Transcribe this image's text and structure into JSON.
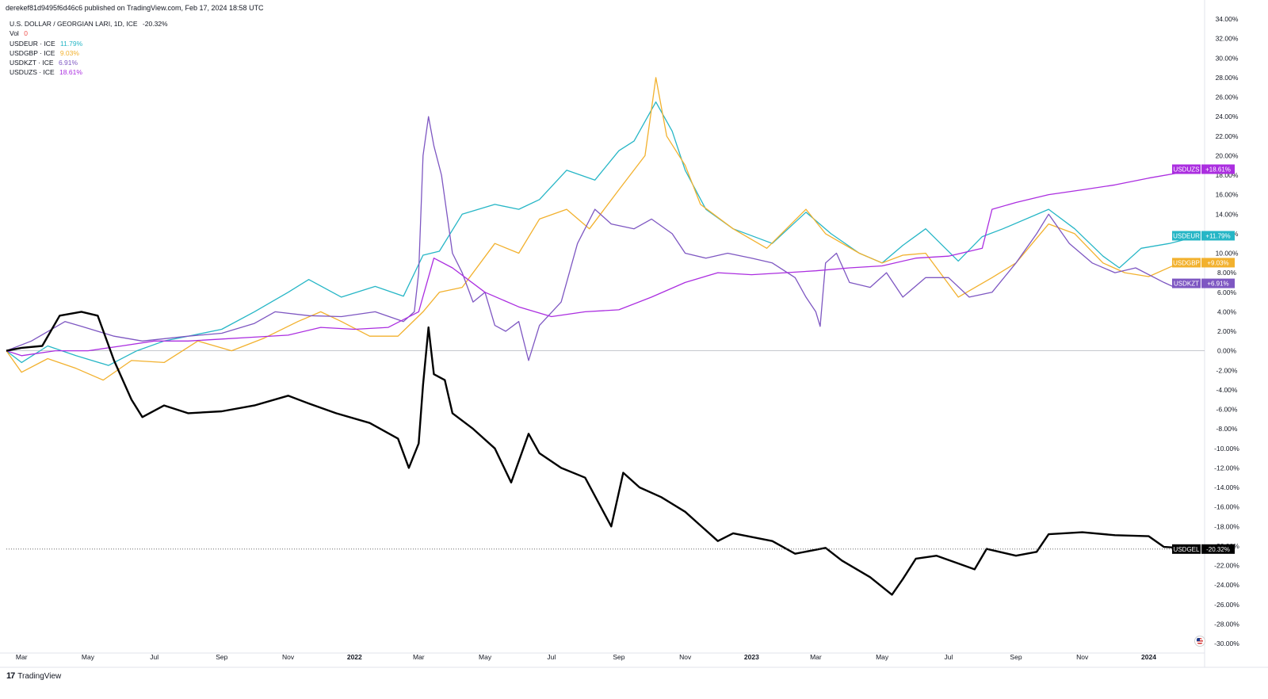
{
  "header": {
    "published": "derekef81d9495f6d46c6 published on TradingView.com, Feb 17, 2024 18:58 UTC"
  },
  "legend": {
    "main_title": "U.S. DOLLAR / GEORGIAN LARI, 1D, ICE",
    "main_value": "-20.32%",
    "vol_label": "Vol",
    "vol_value": "0",
    "rows": [
      {
        "label": "USDEUR · ICE",
        "value": "11.79%",
        "color": "#26b6c6"
      },
      {
        "label": "USDGBP · ICE",
        "value": "9.03%",
        "color": "#f2b12e"
      },
      {
        "label": "USDKZT · ICE",
        "value": "6.91%",
        "color": "#7e57c2"
      },
      {
        "label": "USDUZS · ICE",
        "value": "18.61%",
        "color": "#ab2ee0"
      }
    ]
  },
  "footer": {
    "brand": "TradingView",
    "logo": "tv-logo-icon"
  },
  "chart_data": {
    "type": "line",
    "x_tick_labels": [
      "Mar",
      "May",
      "Jul",
      "Sep",
      "Nov",
      "2022",
      "Mar",
      "May",
      "Jul",
      "Sep",
      "Nov",
      "2023",
      "Mar",
      "May",
      "Jul",
      "Sep",
      "Nov",
      "2024"
    ],
    "y_tick_labels": [
      "34.00%",
      "32.00%",
      "30.00%",
      "28.00%",
      "26.00%",
      "24.00%",
      "22.00%",
      "20.00%",
      "18.00%",
      "16.00%",
      "14.00%",
      "12.00%",
      "10.00%",
      "8.00%",
      "6.00%",
      "4.00%",
      "2.00%",
      "0.00%",
      "-2.00%",
      "-4.00%",
      "-6.00%",
      "-8.00%",
      "-10.00%",
      "-12.00%",
      "-14.00%",
      "-16.00%",
      "-18.00%",
      "-20.00%",
      "-22.00%",
      "-24.00%",
      "-26.00%",
      "-28.00%",
      "-30.00%"
    ],
    "ylim": [
      -30,
      34
    ],
    "xlim": [
      "2021-02-15",
      "2024-02-17"
    ],
    "series": [
      {
        "name": "USDGEL",
        "label": "-20.32%",
        "color": "#000000",
        "width": 2.4,
        "points": [
          [
            "2021-02-15",
            0
          ],
          [
            "2021-03-01",
            0.3
          ],
          [
            "2021-03-20",
            0.5
          ],
          [
            "2021-04-05",
            3.6
          ],
          [
            "2021-04-25",
            4
          ],
          [
            "2021-05-10",
            3.6
          ],
          [
            "2021-05-25",
            -1
          ],
          [
            "2021-06-10",
            -5
          ],
          [
            "2021-06-20",
            -6.8
          ],
          [
            "2021-07-10",
            -5.6
          ],
          [
            "2021-08-01",
            -6.4
          ],
          [
            "2021-09-01",
            -6.2
          ],
          [
            "2021-10-01",
            -5.6
          ],
          [
            "2021-11-01",
            -4.6
          ],
          [
            "2021-11-20",
            -5.4
          ],
          [
            "2021-12-15",
            -6.4
          ],
          [
            "2022-01-15",
            -7.4
          ],
          [
            "2022-02-10",
            -9
          ],
          [
            "2022-02-20",
            -12
          ],
          [
            "2022-03-01",
            -9.5
          ],
          [
            "2022-03-05",
            -3.5
          ],
          [
            "2022-03-10",
            2.4
          ],
          [
            "2022-03-15",
            -2.4
          ],
          [
            "2022-03-25",
            -3
          ],
          [
            "2022-04-01",
            -6.4
          ],
          [
            "2022-04-20",
            -8
          ],
          [
            "2022-05-10",
            -10
          ],
          [
            "2022-05-25",
            -13.5
          ],
          [
            "2022-06-10",
            -8.5
          ],
          [
            "2022-06-20",
            -10.5
          ],
          [
            "2022-07-10",
            -12
          ],
          [
            "2022-08-01",
            -13
          ],
          [
            "2022-08-25",
            -18
          ],
          [
            "2022-09-05",
            -12.5
          ],
          [
            "2022-09-20",
            -14
          ],
          [
            "2022-10-10",
            -15
          ],
          [
            "2022-11-01",
            -16.5
          ],
          [
            "2022-12-01",
            -19.5
          ],
          [
            "2022-12-15",
            -18.7
          ],
          [
            "2023-01-20",
            -19.5
          ],
          [
            "2023-02-10",
            -20.8
          ],
          [
            "2023-03-10",
            -20.2
          ],
          [
            "2023-03-25",
            -21.5
          ],
          [
            "2023-04-20",
            -23.2
          ],
          [
            "2023-05-10",
            -25
          ],
          [
            "2023-05-20",
            -23.4
          ],
          [
            "2023-06-01",
            -21.3
          ],
          [
            "2023-06-20",
            -21
          ],
          [
            "2023-07-10",
            -21.8
          ],
          [
            "2023-07-25",
            -22.4
          ],
          [
            "2023-08-05",
            -20.3
          ],
          [
            "2023-09-01",
            -21
          ],
          [
            "2023-09-20",
            -20.6
          ],
          [
            "2023-10-01",
            -18.8
          ],
          [
            "2023-11-01",
            -18.6
          ],
          [
            "2023-12-01",
            -18.9
          ],
          [
            "2024-01-01",
            -19
          ],
          [
            "2024-01-15",
            -20.1
          ],
          [
            "2024-02-17",
            -20.32
          ]
        ]
      },
      {
        "name": "USDEUR",
        "label": "+11.79%",
        "color": "#26b6c6",
        "width": 1.3,
        "points": [
          [
            "2021-02-15",
            0
          ],
          [
            "2021-03-01",
            -1.2
          ],
          [
            "2021-03-25",
            0.5
          ],
          [
            "2021-04-20",
            -0.5
          ],
          [
            "2021-05-20",
            -1.5
          ],
          [
            "2021-06-15",
            0
          ],
          [
            "2021-07-10",
            1
          ],
          [
            "2021-08-01",
            1.5
          ],
          [
            "2021-09-01",
            2.2
          ],
          [
            "2021-10-01",
            4
          ],
          [
            "2021-11-01",
            6
          ],
          [
            "2021-11-20",
            7.3
          ],
          [
            "2021-12-20",
            5.5
          ],
          [
            "2022-01-20",
            6.6
          ],
          [
            "2022-02-15",
            5.6
          ],
          [
            "2022-03-05",
            9.8
          ],
          [
            "2022-03-20",
            10.2
          ],
          [
            "2022-04-10",
            14
          ],
          [
            "2022-05-10",
            15
          ],
          [
            "2022-06-01",
            14.5
          ],
          [
            "2022-06-20",
            15.5
          ],
          [
            "2022-07-15",
            18.5
          ],
          [
            "2022-08-10",
            17.5
          ],
          [
            "2022-09-01",
            20.5
          ],
          [
            "2022-09-15",
            21.5
          ],
          [
            "2022-10-05",
            25.5
          ],
          [
            "2022-10-20",
            22.5
          ],
          [
            "2022-11-01",
            18.5
          ],
          [
            "2022-11-20",
            14.5
          ],
          [
            "2022-12-15",
            12.5
          ],
          [
            "2023-01-20",
            11
          ],
          [
            "2023-02-20",
            14.2
          ],
          [
            "2023-03-15",
            12
          ],
          [
            "2023-04-10",
            10
          ],
          [
            "2023-05-01",
            9
          ],
          [
            "2023-05-20",
            10.8
          ],
          [
            "2023-06-10",
            12.5
          ],
          [
            "2023-07-10",
            9.2
          ],
          [
            "2023-08-01",
            11.7
          ],
          [
            "2023-08-20",
            12.5
          ],
          [
            "2023-10-01",
            14.5
          ],
          [
            "2023-10-25",
            12.5
          ],
          [
            "2023-11-20",
            9.7
          ],
          [
            "2023-12-05",
            8.5
          ],
          [
            "2023-12-25",
            10.5
          ],
          [
            "2024-01-20",
            11
          ],
          [
            "2024-02-17",
            11.79
          ]
        ]
      },
      {
        "name": "USDGBP",
        "label": "+9.03%",
        "color": "#f2b12e",
        "width": 1.3,
        "points": [
          [
            "2021-02-15",
            0
          ],
          [
            "2021-03-01",
            -2.2
          ],
          [
            "2021-03-25",
            -0.8
          ],
          [
            "2021-04-20",
            -1.8
          ],
          [
            "2021-05-15",
            -3
          ],
          [
            "2021-06-10",
            -1
          ],
          [
            "2021-07-10",
            -1.2
          ],
          [
            "2021-08-10",
            1
          ],
          [
            "2021-09-10",
            0
          ],
          [
            "2021-10-10",
            1.3
          ],
          [
            "2021-11-10",
            3
          ],
          [
            "2021-12-01",
            4
          ],
          [
            "2021-12-20",
            3
          ],
          [
            "2022-01-15",
            1.5
          ],
          [
            "2022-02-10",
            1.5
          ],
          [
            "2022-03-05",
            4
          ],
          [
            "2022-03-20",
            6
          ],
          [
            "2022-04-10",
            6.5
          ],
          [
            "2022-05-10",
            11
          ],
          [
            "2022-06-01",
            10
          ],
          [
            "2022-06-20",
            13.5
          ],
          [
            "2022-07-15",
            14.5
          ],
          [
            "2022-08-05",
            12.5
          ],
          [
            "2022-09-01",
            16.5
          ],
          [
            "2022-09-25",
            20
          ],
          [
            "2022-10-05",
            28
          ],
          [
            "2022-10-15",
            22
          ],
          [
            "2022-11-01",
            19
          ],
          [
            "2022-11-15",
            15
          ],
          [
            "2022-12-15",
            12.5
          ],
          [
            "2023-01-15",
            10.5
          ],
          [
            "2023-02-20",
            14.5
          ],
          [
            "2023-03-10",
            12
          ],
          [
            "2023-04-10",
            10
          ],
          [
            "2023-05-01",
            9
          ],
          [
            "2023-05-20",
            9.8
          ],
          [
            "2023-06-10",
            10
          ],
          [
            "2023-07-10",
            5.5
          ],
          [
            "2023-08-10",
            7.5
          ],
          [
            "2023-09-01",
            9
          ],
          [
            "2023-10-01",
            13
          ],
          [
            "2023-10-25",
            12
          ],
          [
            "2023-11-20",
            9
          ],
          [
            "2023-12-10",
            8
          ],
          [
            "2024-01-01",
            7.6
          ],
          [
            "2024-01-25",
            8.8
          ],
          [
            "2024-02-17",
            9.03
          ]
        ]
      },
      {
        "name": "USDKZT",
        "label": "+6.91%",
        "color": "#7e57c2",
        "width": 1.3,
        "points": [
          [
            "2021-02-15",
            0
          ],
          [
            "2021-03-10",
            1
          ],
          [
            "2021-04-10",
            3
          ],
          [
            "2021-04-25",
            2.5
          ],
          [
            "2021-05-25",
            1.5
          ],
          [
            "2021-06-20",
            1
          ],
          [
            "2021-08-01",
            1.5
          ],
          [
            "2021-09-01",
            1.8
          ],
          [
            "2021-10-01",
            2.8
          ],
          [
            "2021-10-20",
            4
          ],
          [
            "2021-11-20",
            3.6
          ],
          [
            "2021-12-20",
            3.5
          ],
          [
            "2022-01-20",
            4
          ],
          [
            "2022-02-15",
            3
          ],
          [
            "2022-02-25",
            4
          ],
          [
            "2022-03-01",
            8
          ],
          [
            "2022-03-05",
            20
          ],
          [
            "2022-03-10",
            24
          ],
          [
            "2022-03-15",
            21
          ],
          [
            "2022-03-22",
            18
          ],
          [
            "2022-04-01",
            10
          ],
          [
            "2022-04-10",
            8
          ],
          [
            "2022-04-20",
            5
          ],
          [
            "2022-05-01",
            6
          ],
          [
            "2022-05-10",
            2.6
          ],
          [
            "2022-05-20",
            2
          ],
          [
            "2022-06-01",
            3
          ],
          [
            "2022-06-10",
            -1
          ],
          [
            "2022-06-20",
            2.6
          ],
          [
            "2022-07-10",
            5
          ],
          [
            "2022-07-25",
            11
          ],
          [
            "2022-08-10",
            14.5
          ],
          [
            "2022-08-25",
            13
          ],
          [
            "2022-09-15",
            12.5
          ],
          [
            "2022-10-01",
            13.5
          ],
          [
            "2022-10-20",
            12
          ],
          [
            "2022-11-01",
            10
          ],
          [
            "2022-11-20",
            9.5
          ],
          [
            "2022-12-10",
            10
          ],
          [
            "2023-01-01",
            9.5
          ],
          [
            "2023-01-20",
            9
          ],
          [
            "2023-02-10",
            7.5
          ],
          [
            "2023-02-20",
            5.5
          ],
          [
            "2023-03-01",
            4
          ],
          [
            "2023-03-05",
            2.5
          ],
          [
            "2023-03-10",
            9
          ],
          [
            "2023-03-20",
            10
          ],
          [
            "2023-04-01",
            7
          ],
          [
            "2023-04-20",
            6.5
          ],
          [
            "2023-05-05",
            8
          ],
          [
            "2023-05-20",
            5.5
          ],
          [
            "2023-06-10",
            7.5
          ],
          [
            "2023-07-01",
            7.5
          ],
          [
            "2023-07-20",
            5.5
          ],
          [
            "2023-08-10",
            6
          ],
          [
            "2023-09-01",
            9
          ],
          [
            "2023-09-20",
            12
          ],
          [
            "2023-10-01",
            14
          ],
          [
            "2023-10-20",
            11
          ],
          [
            "2023-11-10",
            9
          ],
          [
            "2023-12-01",
            8
          ],
          [
            "2023-12-20",
            8.5
          ],
          [
            "2024-01-15",
            7
          ],
          [
            "2024-01-25",
            6.5
          ],
          [
            "2024-02-17",
            6.91
          ]
        ]
      },
      {
        "name": "USDUZS",
        "label": "+18.61%",
        "color": "#ab2ee0",
        "width": 1.3,
        "points": [
          [
            "2021-02-15",
            0
          ],
          [
            "2021-03-01",
            -0.5
          ],
          [
            "2021-04-01",
            0
          ],
          [
            "2021-05-01",
            0
          ],
          [
            "2021-06-01",
            0.5
          ],
          [
            "2021-07-01",
            1
          ],
          [
            "2021-08-01",
            1
          ],
          [
            "2021-09-01",
            1.2
          ],
          [
            "2021-10-01",
            1.4
          ],
          [
            "2021-11-01",
            1.6
          ],
          [
            "2021-12-01",
            2.4
          ],
          [
            "2022-01-01",
            2.2
          ],
          [
            "2022-02-01",
            2.4
          ],
          [
            "2022-03-01",
            4
          ],
          [
            "2022-03-15",
            9.5
          ],
          [
            "2022-04-01",
            8.5
          ],
          [
            "2022-05-01",
            6
          ],
          [
            "2022-06-01",
            4.5
          ],
          [
            "2022-07-01",
            3.5
          ],
          [
            "2022-08-01",
            4
          ],
          [
            "2022-09-01",
            4.2
          ],
          [
            "2022-10-01",
            5.5
          ],
          [
            "2022-11-01",
            7
          ],
          [
            "2022-12-01",
            8
          ],
          [
            "2023-01-01",
            7.8
          ],
          [
            "2023-02-01",
            8
          ],
          [
            "2023-03-01",
            8.2
          ],
          [
            "2023-04-01",
            8.5
          ],
          [
            "2023-05-01",
            8.7
          ],
          [
            "2023-06-01",
            9.5
          ],
          [
            "2023-07-01",
            9.7
          ],
          [
            "2023-08-01",
            10.5
          ],
          [
            "2023-08-10",
            14.5
          ],
          [
            "2023-09-01",
            15.2
          ],
          [
            "2023-10-01",
            16
          ],
          [
            "2023-11-01",
            16.5
          ],
          [
            "2023-12-01",
            17
          ],
          [
            "2024-01-01",
            17.7
          ],
          [
            "2024-02-17",
            18.61
          ]
        ]
      }
    ]
  }
}
